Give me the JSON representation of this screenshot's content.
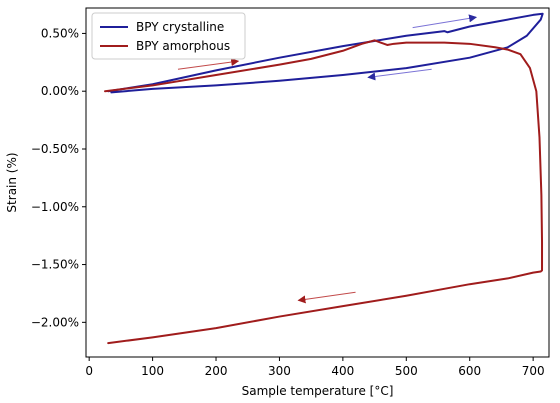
{
  "chart_data": {
    "type": "line",
    "xlabel": "Sample temperature [°C]",
    "ylabel": "Strain (%)",
    "xlim": [
      -5,
      725
    ],
    "ylim": [
      -2.3,
      0.72
    ],
    "xticks": [
      0,
      100,
      200,
      300,
      400,
      500,
      600,
      700
    ],
    "yticks": [
      0.5,
      0.0,
      -0.5,
      -1.0,
      -1.5,
      -2.0
    ],
    "xtick_labels": [
      "0",
      "100",
      "200",
      "300",
      "400",
      "500",
      "600",
      "700"
    ],
    "ytick_labels": [
      "0.50%",
      "0.00%",
      "−0.50%",
      "−1.00%",
      "−1.50%",
      "−2.00%"
    ],
    "grid": false,
    "legend_position": "top-left",
    "series": [
      {
        "name": "BPY crystalline",
        "color": "#1f1f9a",
        "x": [
          30,
          100,
          200,
          300,
          400,
          500,
          560,
          565,
          600,
          650,
          700,
          715,
          712,
          690,
          660,
          600,
          500,
          400,
          300,
          200,
          100,
          35
        ],
        "y": [
          0.0,
          0.06,
          0.18,
          0.29,
          0.39,
          0.48,
          0.52,
          0.51,
          0.56,
          0.61,
          0.66,
          0.67,
          0.62,
          0.48,
          0.38,
          0.29,
          0.2,
          0.14,
          0.09,
          0.05,
          0.02,
          -0.01
        ]
      },
      {
        "name": "BPY amorphous",
        "color": "#a01c1c",
        "x": [
          25,
          100,
          200,
          300,
          350,
          400,
          430,
          450,
          460,
          470,
          480,
          500,
          520,
          560,
          600,
          640,
          660,
          680,
          695,
          705,
          710,
          713,
          714,
          714,
          712,
          700,
          660,
          600,
          560,
          500,
          400,
          300,
          200,
          100,
          30
        ],
        "y": [
          0.0,
          0.05,
          0.14,
          0.23,
          0.28,
          0.35,
          0.41,
          0.44,
          0.42,
          0.4,
          0.41,
          0.42,
          0.42,
          0.42,
          0.41,
          0.38,
          0.36,
          0.32,
          0.2,
          0.0,
          -0.4,
          -0.9,
          -1.3,
          -1.55,
          -1.56,
          -1.57,
          -1.62,
          -1.67,
          -1.71,
          -1.77,
          -1.86,
          -1.95,
          -2.05,
          -2.13,
          -2.18
        ]
      }
    ],
    "annotations": [
      {
        "type": "arrow",
        "color": "#7b73d6",
        "from": [
          510,
          0.55
        ],
        "to": [
          610,
          0.64
        ]
      },
      {
        "type": "arrow",
        "color": "#7b73d6",
        "from": [
          540,
          0.19
        ],
        "to": [
          440,
          0.12
        ]
      },
      {
        "type": "arrow",
        "color": "#c24a4a",
        "from": [
          140,
          0.19
        ],
        "to": [
          235,
          0.26
        ]
      },
      {
        "type": "arrow",
        "color": "#c24a4a",
        "from": [
          420,
          -1.74
        ],
        "to": [
          330,
          -1.81
        ]
      }
    ]
  }
}
